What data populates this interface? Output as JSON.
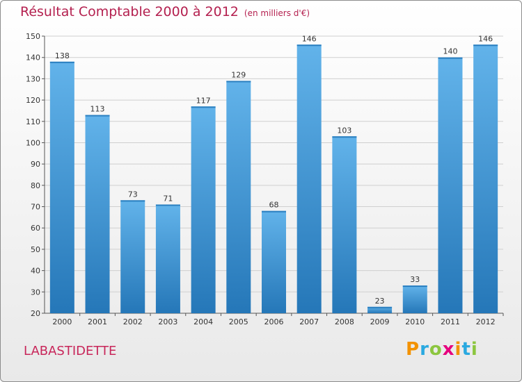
{
  "header": {
    "title": "Résultat Comptable 2000 à 2012",
    "unit": "(en milliers d'€)"
  },
  "footer": {
    "commune": "LABASTIDETTE",
    "logo": [
      "P",
      "r",
      "o",
      "x",
      "i",
      "t",
      "i"
    ],
    "logo_colors": [
      "#f39200",
      "#2aa9e0",
      "#8cc63f",
      "#e6007e",
      "#f39200",
      "#2aa9e0",
      "#8cc63f"
    ]
  },
  "colors": {
    "bar_light": "#62b3ea",
    "bar_dark": "#2577b8",
    "grid": "#cfcfcf",
    "title": "#b4204f"
  },
  "chart_data": {
    "type": "bar",
    "categories": [
      "2000",
      "2001",
      "2002",
      "2003",
      "2004",
      "2005",
      "2006",
      "2007",
      "2008",
      "2009",
      "2010",
      "2011",
      "2012"
    ],
    "values": [
      138,
      113,
      73,
      71,
      117,
      129,
      68,
      146,
      103,
      23,
      33,
      140,
      146
    ],
    "yticks": [
      20,
      30,
      40,
      50,
      60,
      70,
      80,
      90,
      100,
      110,
      120,
      130,
      140,
      150
    ],
    "ylim": [
      20,
      150
    ],
    "grid": true
  }
}
